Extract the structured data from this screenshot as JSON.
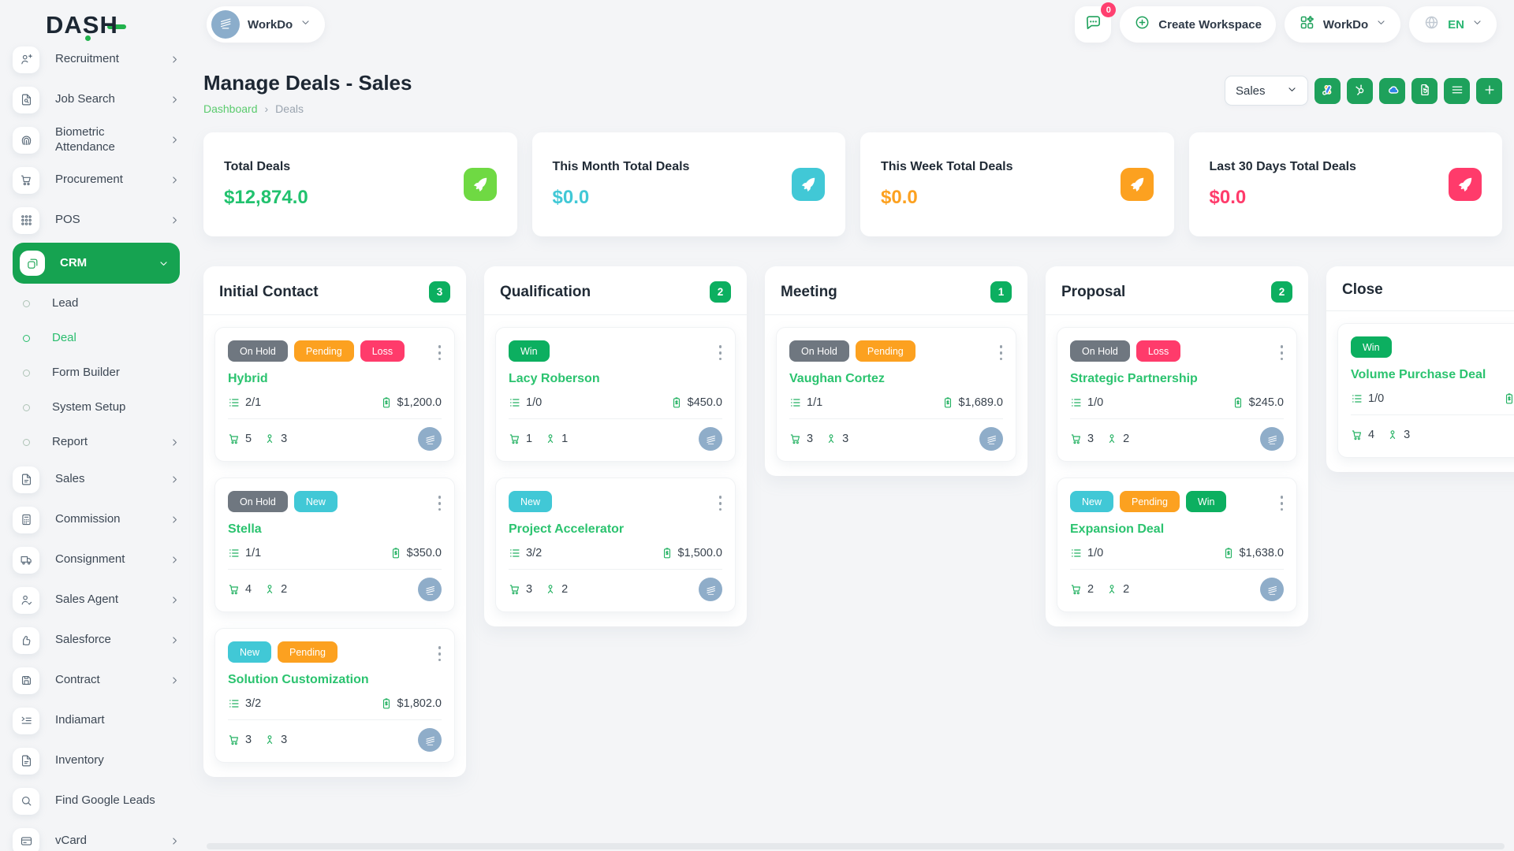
{
  "header": {
    "logo_text": "DASH",
    "workspace_switcher": {
      "name": "WorkDo"
    },
    "notifications_count": "0",
    "create_workspace_label": "Create Workspace",
    "app_menu_label": "WorkDo",
    "language_code": "EN"
  },
  "sidebar": {
    "items": [
      {
        "label": "Recruitment",
        "icon": "person-plus-icon",
        "chevron": true
      },
      {
        "label": "Job Search",
        "icon": "doc-search-icon",
        "chevron": true
      },
      {
        "label": "Biometric Attendance",
        "icon": "fingerprint-icon",
        "chevron": true
      },
      {
        "label": "Procurement",
        "icon": "procurement-cart-icon",
        "chevron": true
      },
      {
        "label": "POS",
        "icon": "grid-dots-icon",
        "chevron": true
      },
      {
        "label": "CRM",
        "icon": "crm-icon",
        "active": true,
        "chevron": "down"
      },
      {
        "label": "Lead",
        "type": "child"
      },
      {
        "label": "Deal",
        "type": "child",
        "active": true
      },
      {
        "label": "Form Builder",
        "type": "child"
      },
      {
        "label": "System Setup",
        "type": "child"
      },
      {
        "label": "Report",
        "type": "child",
        "chevron": true
      },
      {
        "label": "Sales",
        "icon": "doc-icon",
        "chevron": true
      },
      {
        "label": "Commission",
        "icon": "calculator-icon",
        "chevron": true
      },
      {
        "label": "Consignment",
        "icon": "truck-icon",
        "chevron": true
      },
      {
        "label": "Sales Agent",
        "icon": "person-check-icon",
        "chevron": true
      },
      {
        "label": "Salesforce",
        "icon": "thumb-up-icon",
        "chevron": true
      },
      {
        "label": "Contract",
        "icon": "floppy-icon",
        "chevron": true
      },
      {
        "label": "Indiamart",
        "icon": "list-arrow-icon",
        "chevron": false
      },
      {
        "label": "Inventory",
        "icon": "doc-icon",
        "chevron": false
      },
      {
        "label": "Find Google Leads",
        "icon": "search-icon",
        "chevron": false
      },
      {
        "label": "vCard",
        "icon": "card-icon",
        "chevron": true
      }
    ]
  },
  "page": {
    "title": "Manage Deals - Sales",
    "breadcrumb": {
      "home": "Dashboard",
      "separator": "›",
      "current": "Deals"
    },
    "pipeline_select_value": "Sales",
    "toolbar_buttons": [
      {
        "name": "google-ads-button",
        "icon": "google-ads-icon"
      },
      {
        "name": "hubspot-button",
        "icon": "hubspot-icon"
      },
      {
        "name": "onedrive-button",
        "icon": "onedrive-icon"
      },
      {
        "name": "export-doc-button",
        "icon": "export-doc-icon"
      },
      {
        "name": "list-view-button",
        "icon": "list-view-icon"
      },
      {
        "name": "add-deal-button",
        "icon": "add-icon"
      }
    ]
  },
  "stats": [
    {
      "label": "Total Deals",
      "value": "$12,874.0",
      "value_color": "#21c26e",
      "icon_bg": "#6fd943"
    },
    {
      "label": "This Month Total Deals",
      "value": "$0.0",
      "value_color": "#41c8d6",
      "icon_bg": "#41c8d6"
    },
    {
      "label": "This Week Total Deals",
      "value": "$0.0",
      "value_color": "#fca120",
      "icon_bg": "#fca120"
    },
    {
      "label": "Last 30 Days Total Deals",
      "value": "$0.0",
      "value_color": "#ff3b6b",
      "icon_bg": "#ff3b6b"
    }
  ],
  "badge_colors": {
    "On Hold": "#6f7780",
    "Pending": "#fca120",
    "Loss": "#ff3b6b",
    "New": "#41c8d6",
    "Win": "#0caf60"
  },
  "board": {
    "columns": [
      {
        "name": "Initial Contact",
        "count": "3",
        "cards": [
          {
            "badges": [
              "On Hold",
              "Pending",
              "Loss"
            ],
            "name": "Hybrid",
            "tasks": "2/1",
            "value": "$1,200.0",
            "products": "5",
            "contacts": "3"
          },
          {
            "badges": [
              "On Hold",
              "New"
            ],
            "name": "Stella",
            "tasks": "1/1",
            "value": "$350.0",
            "products": "4",
            "contacts": "2"
          },
          {
            "badges": [
              "New",
              "Pending"
            ],
            "name": "Solution Customization",
            "tasks": "3/2",
            "value": "$1,802.0",
            "products": "3",
            "contacts": "3"
          }
        ]
      },
      {
        "name": "Qualification",
        "count": "2",
        "cards": [
          {
            "badges": [
              "Win"
            ],
            "name": "Lacy Roberson",
            "tasks": "1/0",
            "value": "$450.0",
            "products": "1",
            "contacts": "1"
          },
          {
            "badges": [
              "New"
            ],
            "name": "Project Accelerator",
            "tasks": "3/2",
            "value": "$1,500.0",
            "products": "3",
            "contacts": "2"
          }
        ]
      },
      {
        "name": "Meeting",
        "count": "1",
        "cards": [
          {
            "badges": [
              "On Hold",
              "Pending"
            ],
            "name": "Vaughan Cortez",
            "tasks": "1/1",
            "value": "$1,689.0",
            "products": "3",
            "contacts": "3"
          }
        ]
      },
      {
        "name": "Proposal",
        "count": "2",
        "cards": [
          {
            "badges": [
              "On Hold",
              "Loss"
            ],
            "name": "Strategic Partnership",
            "tasks": "1/0",
            "value": "$245.0",
            "products": "3",
            "contacts": "2"
          },
          {
            "badges": [
              "New",
              "Pending",
              "Win"
            ],
            "name": "Expansion Deal",
            "tasks": "1/0",
            "value": "$1,638.0",
            "products": "2",
            "contacts": "2"
          }
        ]
      },
      {
        "name": "Close",
        "count": null,
        "cards": [
          {
            "badges": [
              "Win"
            ],
            "name": "Volume Purchase Deal",
            "tasks": "1/0",
            "value": "",
            "products": "4",
            "contacts": "3"
          }
        ]
      }
    ]
  }
}
